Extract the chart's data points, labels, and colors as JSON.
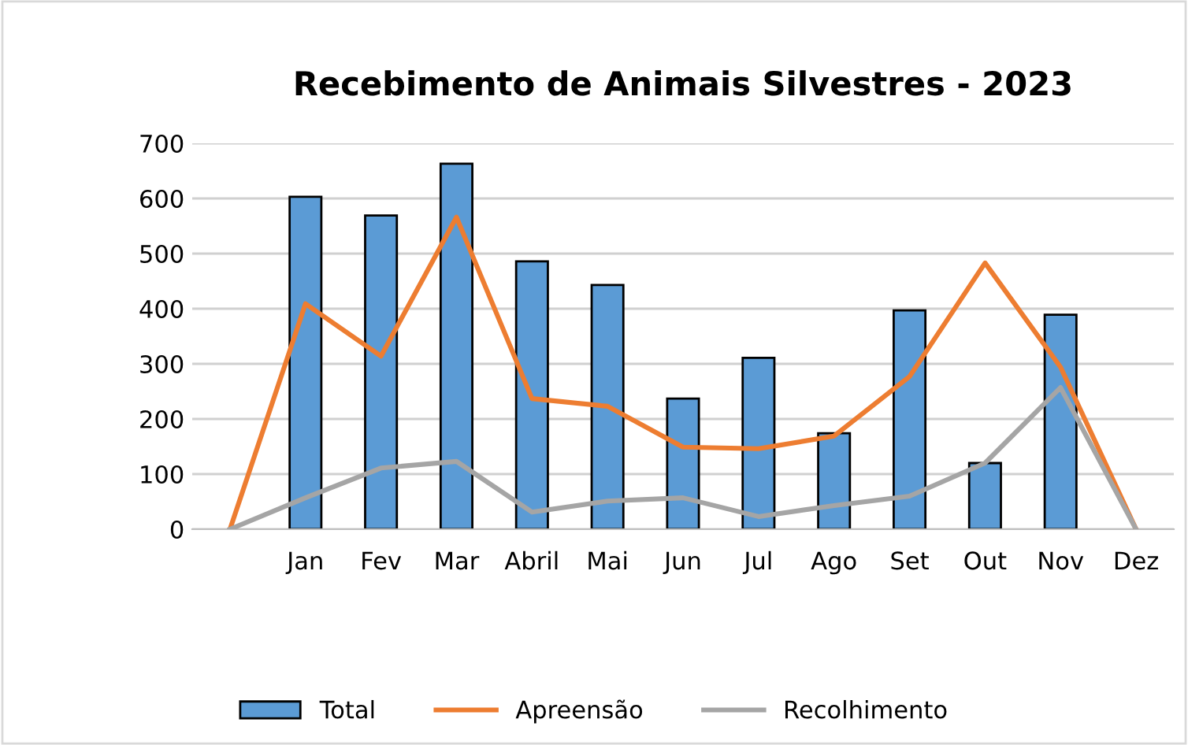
{
  "chart_data": {
    "type": "bar",
    "title": "Recebimento de Animais Silvestres - 2023",
    "categories": [
      null,
      "Jan",
      "Fev",
      "Mar",
      "Abril",
      "Mai",
      "Jun",
      "Jul",
      "Ago",
      "Set",
      "Out",
      "Nov",
      "Dez"
    ],
    "series": [
      {
        "name": "Total",
        "color": "#5b9bd5",
        "values": [
          null,
          603,
          569,
          663,
          486,
          443,
          237,
          311,
          174,
          397,
          120,
          389,
          null
        ]
      },
      {
        "name": "Apreensão",
        "type": "line",
        "color": "#ed7d31",
        "values": [
          0,
          409,
          314,
          566,
          237,
          223,
          149,
          146,
          169,
          277,
          483,
          294,
          0
        ]
      },
      {
        "name": "Recolhimento",
        "type": "line",
        "color": "#a5a5a5",
        "values": [
          0,
          57,
          111,
          123,
          31,
          51,
          57,
          23,
          43,
          60,
          120,
          257,
          0
        ]
      }
    ],
    "ylim": [
      0,
      700
    ],
    "yticks": [
      0,
      100,
      200,
      300,
      400,
      500,
      600,
      700
    ],
    "grid": "y",
    "legend": "bottom"
  }
}
